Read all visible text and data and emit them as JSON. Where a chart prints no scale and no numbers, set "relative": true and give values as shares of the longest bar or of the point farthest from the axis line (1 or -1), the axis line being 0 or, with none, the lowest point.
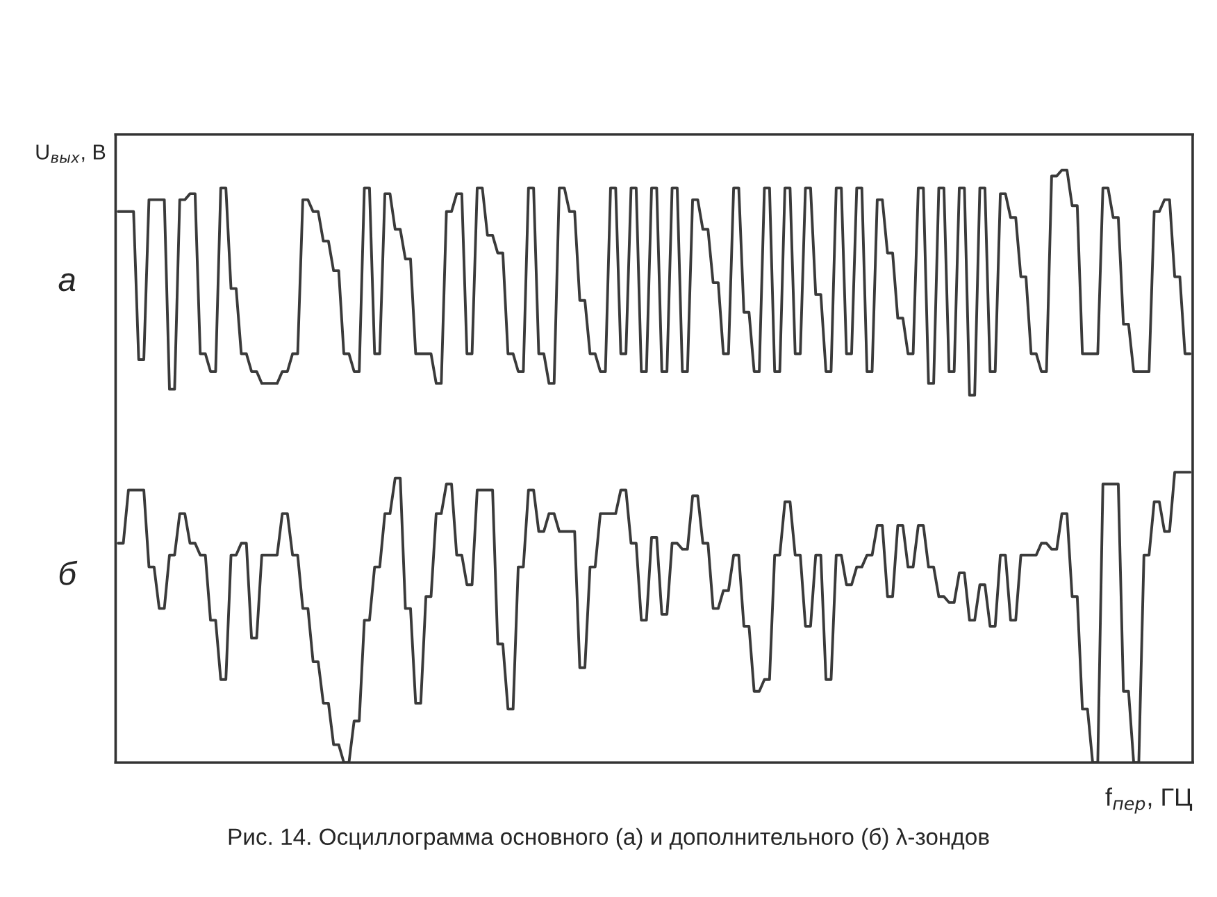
{
  "chart_data": {
    "type": "line",
    "relative": true,
    "xlabel": "f$_{пер}$, ГЦ",
    "ylabel": "U$_{вых}$, В",
    "annotations": [
      "Рис. 14. Осциллограмма основного (а) и дополнительного (б) λ-зондов"
    ],
    "legend": false,
    "grid": false,
    "categories": [
      null,
      null,
      null,
      null,
      null,
      null,
      null,
      null,
      null,
      null,
      null,
      null,
      null,
      null,
      null,
      null,
      null,
      null,
      null,
      null,
      null,
      null,
      null,
      null,
      null,
      null,
      null,
      null,
      null,
      null,
      null,
      null,
      null,
      null,
      null,
      null,
      null,
      null,
      null,
      null,
      null,
      null,
      null,
      null,
      null,
      null,
      null,
      null,
      null,
      null,
      null,
      null,
      null,
      null,
      null,
      null,
      null,
      null,
      null,
      null,
      null,
      null,
      null,
      null,
      null,
      null,
      null,
      null,
      null,
      null,
      null,
      null,
      null,
      null,
      null,
      null,
      null,
      null,
      null,
      null,
      null,
      null,
      null,
      null,
      null,
      null,
      null,
      null,
      null,
      null,
      null,
      null,
      null,
      null,
      null,
      null,
      null,
      null,
      null,
      null,
      null,
      null,
      null,
      null,
      null,
      null,
      null,
      null,
      null,
      null,
      null,
      null,
      null,
      null,
      null,
      null,
      null,
      null,
      null,
      null,
      null,
      null,
      null,
      null,
      null,
      null,
      null,
      null,
      null,
      null,
      null,
      null,
      null,
      null,
      null,
      null,
      null,
      null,
      null,
      null,
      null,
      null,
      null,
      null,
      null,
      null,
      null,
      null,
      null,
      null,
      null,
      null,
      null,
      null,
      null,
      null,
      null,
      null,
      null,
      null,
      null,
      null,
      null,
      null,
      null,
      null,
      null,
      null,
      null,
      null,
      null,
      null,
      null,
      null,
      null,
      null,
      null,
      null,
      null,
      null,
      null,
      null,
      null,
      null,
      null,
      null,
      null,
      null,
      null,
      null,
      null,
      null,
      null,
      null,
      null,
      null,
      null,
      null,
      null,
      null,
      null,
      null,
      null,
      null,
      null,
      null,
      null,
      null,
      null,
      null
    ],
    "series": [
      {
        "name": "а",
        "color": "#3a3a3a",
        "values": [
          0.93,
          0.93,
          0.93,
          0.93,
          0.68,
          0.68,
          0.95,
          0.95,
          0.95,
          0.95,
          0.63,
          0.63,
          0.95,
          0.95,
          0.96,
          0.96,
          0.69,
          0.69,
          0.66,
          0.66,
          0.97,
          0.97,
          0.8,
          0.8,
          0.69,
          0.69,
          0.66,
          0.66,
          0.64,
          0.64,
          0.64,
          0.64,
          0.66,
          0.66,
          0.69,
          0.69,
          0.95,
          0.95,
          0.93,
          0.93,
          0.88,
          0.88,
          0.83,
          0.83,
          0.69,
          0.69,
          0.66,
          0.66,
          0.97,
          0.97,
          0.69,
          0.69,
          0.96,
          0.96,
          0.9,
          0.9,
          0.85,
          0.85,
          0.69,
          0.69,
          0.69,
          0.69,
          0.64,
          0.64,
          0.93,
          0.93,
          0.96,
          0.96,
          0.69,
          0.69,
          0.97,
          0.97,
          0.89,
          0.89,
          0.86,
          0.86,
          0.69,
          0.69,
          0.66,
          0.66,
          0.97,
          0.97,
          0.69,
          0.69,
          0.64,
          0.64,
          0.97,
          0.97,
          0.93,
          0.93,
          0.78,
          0.78,
          0.69,
          0.69,
          0.66,
          0.66,
          0.97,
          0.97,
          0.69,
          0.69,
          0.97,
          0.97,
          0.66,
          0.66,
          0.97,
          0.97,
          0.66,
          0.66,
          0.97,
          0.97,
          0.66,
          0.66,
          0.95,
          0.95,
          0.9,
          0.9,
          0.81,
          0.81,
          0.69,
          0.69,
          0.97,
          0.97,
          0.76,
          0.76,
          0.66,
          0.66,
          0.97,
          0.97,
          0.66,
          0.66,
          0.97,
          0.97,
          0.69,
          0.69,
          0.97,
          0.97,
          0.79,
          0.79,
          0.66,
          0.66,
          0.97,
          0.97,
          0.69,
          0.69,
          0.97,
          0.97,
          0.66,
          0.66,
          0.95,
          0.95,
          0.86,
          0.86,
          0.75,
          0.75,
          0.69,
          0.69,
          0.97,
          0.97,
          0.64,
          0.64,
          0.97,
          0.97,
          0.66,
          0.66,
          0.97,
          0.97,
          0.62,
          0.62,
          0.97,
          0.97,
          0.66,
          0.66,
          0.96,
          0.96,
          0.92,
          0.92,
          0.82,
          0.82,
          0.69,
          0.69,
          0.66,
          0.66,
          0.99,
          0.99,
          1.0,
          1.0,
          0.94,
          0.94,
          0.69,
          0.69,
          0.69,
          0.69,
          0.97,
          0.97,
          0.92,
          0.92,
          0.74,
          0.74,
          0.66,
          0.66,
          0.66,
          0.66,
          0.93,
          0.93,
          0.95,
          0.95,
          0.82,
          0.82,
          0.69,
          0.69
        ]
      },
      {
        "name": "б",
        "color": "#3a3a3a",
        "values": [
          0.37,
          0.37,
          0.46,
          0.46,
          0.46,
          0.46,
          0.33,
          0.33,
          0.26,
          0.26,
          0.35,
          0.35,
          0.42,
          0.42,
          0.37,
          0.37,
          0.35,
          0.35,
          0.24,
          0.24,
          0.14,
          0.14,
          0.35,
          0.35,
          0.37,
          0.37,
          0.21,
          0.21,
          0.35,
          0.35,
          0.35,
          0.35,
          0.42,
          0.42,
          0.35,
          0.35,
          0.26,
          0.26,
          0.17,
          0.17,
          0.1,
          0.1,
          0.03,
          0.03,
          0.0,
          0.0,
          0.07,
          0.07,
          0.24,
          0.24,
          0.33,
          0.33,
          0.42,
          0.42,
          0.48,
          0.48,
          0.26,
          0.26,
          0.1,
          0.1,
          0.28,
          0.28,
          0.42,
          0.42,
          0.47,
          0.47,
          0.35,
          0.35,
          0.3,
          0.3,
          0.46,
          0.46,
          0.46,
          0.46,
          0.2,
          0.2,
          0.09,
          0.09,
          0.33,
          0.33,
          0.46,
          0.46,
          0.39,
          0.39,
          0.42,
          0.42,
          0.39,
          0.39,
          0.39,
          0.39,
          0.16,
          0.16,
          0.33,
          0.33,
          0.42,
          0.42,
          0.42,
          0.42,
          0.46,
          0.46,
          0.37,
          0.37,
          0.24,
          0.24,
          0.38,
          0.38,
          0.25,
          0.25,
          0.37,
          0.37,
          0.36,
          0.36,
          0.45,
          0.45,
          0.37,
          0.37,
          0.26,
          0.26,
          0.29,
          0.29,
          0.35,
          0.35,
          0.23,
          0.23,
          0.12,
          0.12,
          0.14,
          0.14,
          0.35,
          0.35,
          0.44,
          0.44,
          0.35,
          0.35,
          0.23,
          0.23,
          0.35,
          0.35,
          0.14,
          0.14,
          0.35,
          0.35,
          0.3,
          0.3,
          0.33,
          0.33,
          0.35,
          0.35,
          0.4,
          0.4,
          0.28,
          0.28,
          0.4,
          0.4,
          0.33,
          0.33,
          0.4,
          0.4,
          0.33,
          0.33,
          0.28,
          0.28,
          0.27,
          0.27,
          0.32,
          0.32,
          0.24,
          0.24,
          0.3,
          0.3,
          0.23,
          0.23,
          0.35,
          0.35,
          0.24,
          0.24,
          0.35,
          0.35,
          0.35,
          0.35,
          0.37,
          0.37,
          0.36,
          0.36,
          0.42,
          0.42,
          0.28,
          0.28,
          0.09,
          0.09,
          0.0,
          0.0,
          0.47,
          0.47,
          0.47,
          0.47,
          0.12,
          0.12,
          0.0,
          0.0,
          0.35,
          0.35,
          0.44,
          0.44,
          0.39,
          0.39,
          0.49,
          0.49,
          0.49,
          0.49
        ]
      }
    ]
  }
}
